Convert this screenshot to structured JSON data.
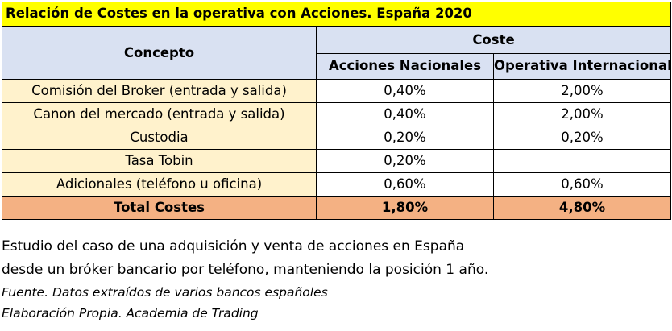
{
  "table": {
    "title": "Relación de Costes en la operativa con Acciones. España 2020",
    "concept_header": "Concepto",
    "cost_header": "Coste",
    "column_headers": [
      "Acciones Nacionales",
      "Operativa Internacional"
    ],
    "rows": [
      {
        "concept": "Comisión del Broker (entrada y salida)",
        "nacional": "0,40%",
        "internacional": "2,00%"
      },
      {
        "concept": "Canon del mercado (entrada y salida)",
        "nacional": "0,40%",
        "internacional": "2,00%"
      },
      {
        "concept": "Custodia",
        "nacional": "0,20%",
        "internacional": "0,20%"
      },
      {
        "concept": "Tasa Tobin",
        "nacional": "0,20%",
        "internacional": ""
      },
      {
        "concept": "Adicionales (teléfono u oficina)",
        "nacional": "0,60%",
        "internacional": "0,60%"
      }
    ],
    "total": {
      "concept": "Total Costes",
      "nacional": "1,80%",
      "internacional": "4,80%"
    },
    "colors": {
      "title_bg": "#ffff00",
      "header_bg": "#d9e1f2",
      "concept_bg": "#fff2cc",
      "total_bg": "#f4b183"
    }
  },
  "notes": {
    "line1": "Estudio del caso de una adquisición y venta de acciones en España",
    "line2": "desde un bróker bancario por teléfono, manteniendo la posición 1 año.",
    "source": "Fuente. Datos extraídos de varios bancos españoles",
    "credit": "Elaboración Propia. Academia de Trading"
  }
}
